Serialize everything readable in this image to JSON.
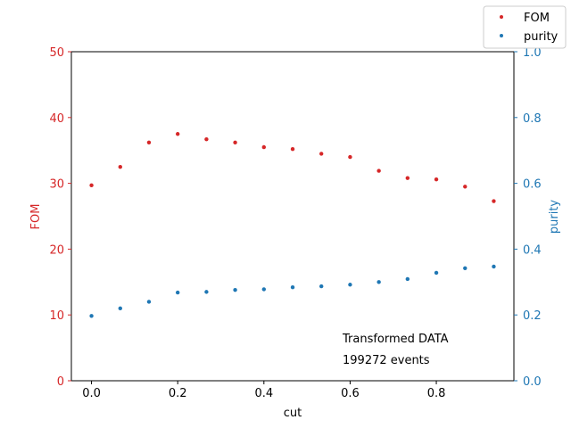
{
  "chart_data": {
    "type": "scatter",
    "xlabel": "cut",
    "ylabel_left": "FOM",
    "ylabel_right": "purity",
    "xlim": [
      -0.0467,
      0.98
    ],
    "ylim_left": [
      0,
      50
    ],
    "ylim_right": [
      0.0,
      1.0
    ],
    "xticks": [
      "0.0",
      "0.2",
      "0.4",
      "0.6",
      "0.8"
    ],
    "yticks_left": [
      "0",
      "10",
      "20",
      "30",
      "40",
      "50"
    ],
    "yticks_right": [
      "0.0",
      "0.2",
      "0.4",
      "0.6",
      "0.8",
      "1.0"
    ],
    "grid": false,
    "legend_position": "top-right",
    "annotations": [
      "Transformed DATA",
      "199272 events"
    ],
    "series": [
      {
        "name": "FOM",
        "axis": "left",
        "color": "#d62728",
        "x": [
          0.0,
          0.0667,
          0.1333,
          0.2,
          0.2667,
          0.3333,
          0.4,
          0.4667,
          0.5333,
          0.6,
          0.6667,
          0.7333,
          0.8,
          0.8667,
          0.9333
        ],
        "y": [
          29.7,
          32.5,
          36.2,
          37.5,
          36.7,
          36.2,
          35.5,
          35.2,
          34.5,
          34.0,
          31.9,
          30.8,
          30.6,
          29.5,
          27.3
        ]
      },
      {
        "name": "purity",
        "axis": "right",
        "color": "#1f77b4",
        "x": [
          0.0,
          0.0667,
          0.1333,
          0.2,
          0.2667,
          0.3333,
          0.4,
          0.4667,
          0.5333,
          0.6,
          0.6667,
          0.7333,
          0.8,
          0.8667,
          0.9333
        ],
        "y": [
          0.197,
          0.22,
          0.24,
          0.268,
          0.27,
          0.276,
          0.278,
          0.284,
          0.287,
          0.292,
          0.3,
          0.309,
          0.328,
          0.342,
          0.347
        ]
      }
    ]
  },
  "colors": {
    "fom": "#d62728",
    "purity": "#1f77b4",
    "axis": "#000000"
  }
}
